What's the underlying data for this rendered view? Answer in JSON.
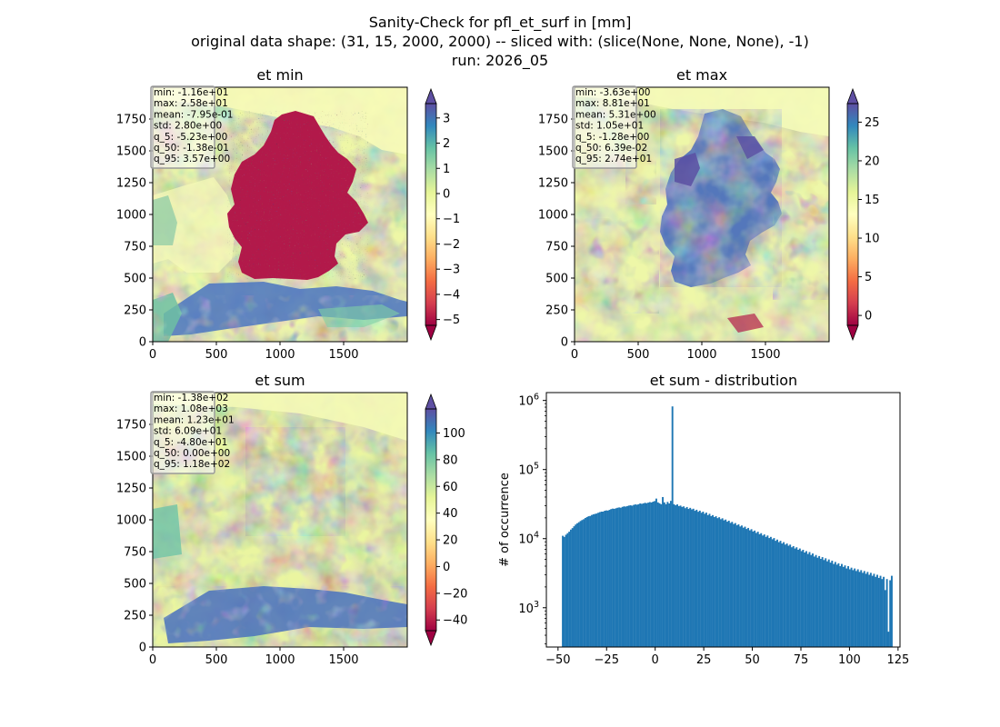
{
  "figure": {
    "suptitle": [
      "Sanity-Check for pfl_et_surf in [mm]",
      "original data shape: (31, 15, 2000, 2000) -- sliced with: (slice(None, None, None), -1)",
      "run: 2026_05"
    ]
  },
  "colormaps": {
    "spectral": [
      "#9e0142",
      "#d53e4f",
      "#f46d43",
      "#fdae61",
      "#fee08b",
      "#ffffbf",
      "#e6f598",
      "#abdda4",
      "#66c2a5",
      "#3288bd",
      "#5e4fa2"
    ]
  },
  "chart_data": [
    {
      "type": "heatmap",
      "title": "et min",
      "x_ticks": [
        0,
        500,
        1000,
        1500
      ],
      "y_ticks": [
        0,
        250,
        500,
        750,
        1000,
        1250,
        1500,
        1750
      ],
      "xlim": [
        0,
        2000
      ],
      "ylim": [
        0,
        2000
      ],
      "colorbar": {
        "min": -5.23,
        "max": 3.57,
        "ticks": [
          -5,
          -4,
          -3,
          -2,
          -1,
          0,
          1,
          2,
          3
        ],
        "extend": "both",
        "cmap": "Spectral"
      },
      "stats": [
        "min: -1.16e+01",
        "max: 2.58e+01",
        "mean: -7.95e-01",
        "std: 2.80e+00",
        "q_5: -5.23e+00",
        "q_50: -1.38e-01",
        "q_95: 3.57e+00"
      ]
    },
    {
      "type": "heatmap",
      "title": "et max",
      "x_ticks": [
        0,
        500,
        1000,
        1500
      ],
      "y_ticks": [
        0,
        250,
        500,
        750,
        1000,
        1250,
        1500,
        1750
      ],
      "xlim": [
        0,
        2000
      ],
      "ylim": [
        0,
        2000
      ],
      "colorbar": {
        "min": -1.28,
        "max": 27.4,
        "ticks": [
          0,
          5,
          10,
          15,
          20,
          25
        ],
        "extend": "both",
        "cmap": "Spectral"
      },
      "stats": [
        "min: -3.63e+00",
        "max: 8.81e+01",
        "mean: 5.31e+00",
        "std: 1.05e+01",
        "q_5: -1.28e+00",
        "q_50: 6.39e-02",
        "q_95: 2.74e+01"
      ]
    },
    {
      "type": "heatmap",
      "title": "et sum",
      "x_ticks": [
        0,
        500,
        1000,
        1500
      ],
      "y_ticks": [
        0,
        250,
        500,
        750,
        1000,
        1250,
        1500,
        1750
      ],
      "xlim": [
        0,
        2000
      ],
      "ylim": [
        0,
        2000
      ],
      "colorbar": {
        "min": -48.0,
        "max": 118,
        "ticks": [
          -40,
          -20,
          0,
          20,
          40,
          60,
          80,
          100
        ],
        "extend": "both",
        "cmap": "Spectral"
      },
      "stats": [
        "min: -1.38e+02",
        "max: 1.08e+03",
        "mean: 1.23e+01",
        "std: 6.09e+01",
        "q_5: -4.80e+01",
        "q_50: 0.00e+00",
        "q_95: 1.18e+02"
      ]
    },
    {
      "type": "bar",
      "title": "et sum - distribution",
      "ylabel": "# of occurrence",
      "xlabel": "",
      "x_ticks": [
        -50,
        -25,
        0,
        25,
        50,
        75,
        100,
        125
      ],
      "xlim": [
        -56,
        126
      ],
      "ylim": [
        270,
        1300000
      ],
      "yscale": "log",
      "y_ticks": [
        1000,
        10000,
        100000,
        1000000
      ],
      "y_tick_labels": [
        [
          "10",
          "3"
        ],
        [
          "10",
          "4"
        ],
        [
          "10",
          "5"
        ],
        [
          "10",
          "6"
        ]
      ],
      "bar_color": "#1f77b4",
      "bin_width": 0.83,
      "bin_start": -48.0,
      "values": [
        11000,
        10600,
        11400,
        12000,
        12600,
        13500,
        14200,
        15100,
        16000,
        16700,
        17300,
        18000,
        18600,
        19100,
        19900,
        20500,
        21100,
        21300,
        22000,
        22500,
        22800,
        23100,
        23700,
        24200,
        24600,
        24600,
        25300,
        25600,
        25500,
        26100,
        26800,
        27200,
        27000,
        27500,
        28000,
        28300,
        28000,
        28800,
        29300,
        29100,
        29600,
        30100,
        30400,
        30000,
        30800,
        31300,
        31000,
        31500,
        32300,
        31900,
        32400,
        33000,
        32600,
        33200,
        33800,
        33400,
        34300,
        35000,
        38000,
        33500,
        32500,
        31500,
        40000,
        33500,
        31500,
        34000,
        32300,
        35200,
        820000,
        31500,
        30400,
        31300,
        29600,
        30100,
        28800,
        29300,
        27600,
        28700,
        26900,
        27900,
        26500,
        27100,
        25300,
        26200,
        24500,
        25400,
        23700,
        24600,
        22900,
        23800,
        21900,
        22900,
        21200,
        21900,
        20500,
        21100,
        19800,
        20400,
        19100,
        19700,
        18400,
        18900,
        17600,
        18200,
        16900,
        17500,
        16300,
        16800,
        15600,
        16100,
        15000,
        15500,
        14400,
        14900,
        13800,
        14300,
        13200,
        13700,
        12700,
        13100,
        12100,
        12600,
        11600,
        12000,
        11100,
        11500,
        10600,
        11100,
        10200,
        10600,
        9800,
        10200,
        9300,
        9700,
        8900,
        9300,
        8500,
        8900,
        8200,
        8500,
        7900,
        8200,
        7500,
        7800,
        7200,
        7500,
        6900,
        7200,
        6600,
        6900,
        6300,
        6600,
        6000,
        6400,
        5800,
        6100,
        5500,
        5800,
        5300,
        5600,
        5100,
        5400,
        4900,
        5200,
        4700,
        5000,
        4500,
        4800,
        4300,
        4600,
        4200,
        4400,
        4000,
        4300,
        3900,
        4100,
        3700,
        4000,
        3600,
        3800,
        3500,
        3700,
        3400,
        3600,
        3300,
        3500,
        3200,
        3400,
        3100,
        3300,
        3000,
        3200,
        2900,
        3100,
        2800,
        3000,
        2700,
        2900,
        2600,
        2800,
        1800,
        2600,
        450,
        2500,
        2900
      ]
    }
  ]
}
